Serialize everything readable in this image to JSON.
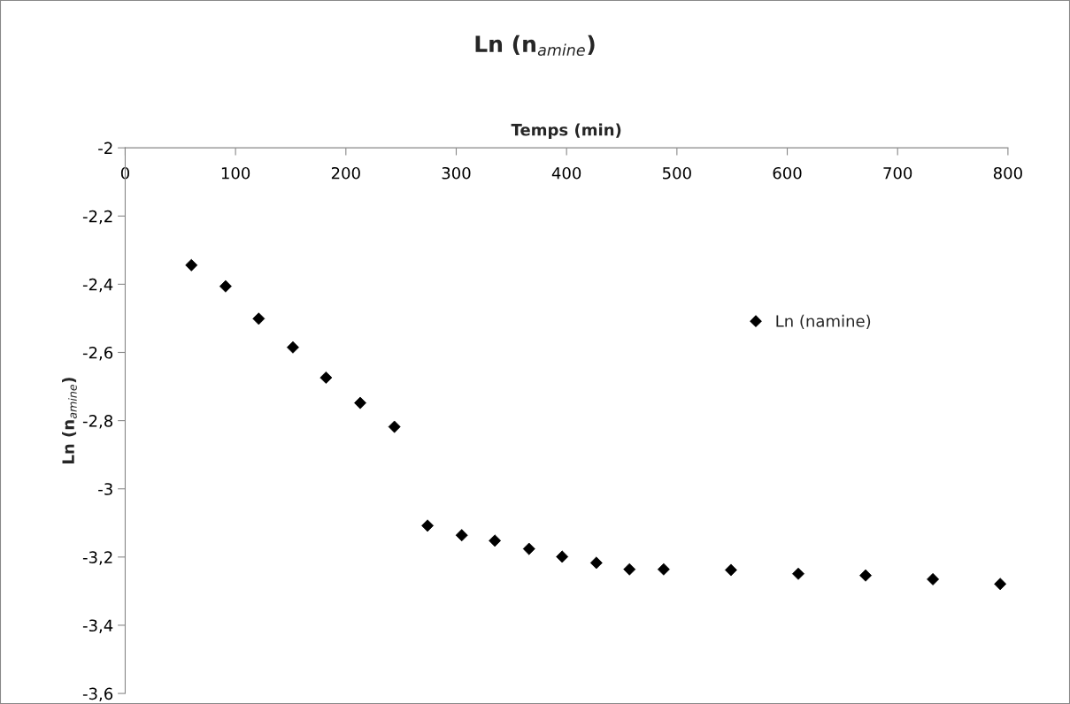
{
  "chart_data": {
    "type": "scatter",
    "title": "Ln (n$_{amine}$)",
    "xlabel": "Temps (min)",
    "ylabel": "Ln (n$_{amine}$)",
    "series": [
      {
        "name": "Ln (namine)",
        "color": "#000000",
        "x": [
          60,
          91,
          121,
          152,
          182,
          213,
          244,
          274,
          305,
          335,
          366,
          396,
          427,
          457,
          488,
          549,
          610,
          671,
          732,
          793
        ],
        "values": [
          -2.344,
          -2.406,
          -2.501,
          -2.585,
          -2.674,
          -2.748,
          -2.818,
          -3.108,
          -3.136,
          -3.152,
          -3.176,
          -3.199,
          -3.217,
          -3.236,
          -3.236,
          -3.238,
          -3.249,
          -3.254,
          -3.265,
          -3.279
        ]
      }
    ],
    "marker": "diamond",
    "legend": "right",
    "grid": false,
    "xlim": [
      0,
      800
    ],
    "xticks": [
      0,
      100,
      200,
      300,
      400,
      500,
      600,
      700,
      800
    ],
    "ylim": [
      -3.6,
      -2
    ],
    "yticks": [
      -2,
      {
        "value": -2.2,
        "label": "-2,2"
      },
      {
        "value": -2.4,
        "label": "-2,4"
      },
      {
        "value": -2.6,
        "label": "-2,6"
      },
      {
        "value": -2.8,
        "label": "-2,8"
      },
      -3,
      {
        "value": -3.2,
        "label": "-3,2"
      },
      {
        "value": -3.4,
        "label": "-3,4"
      },
      {
        "value": -3.6,
        "label": "-3,6"
      }
    ]
  }
}
